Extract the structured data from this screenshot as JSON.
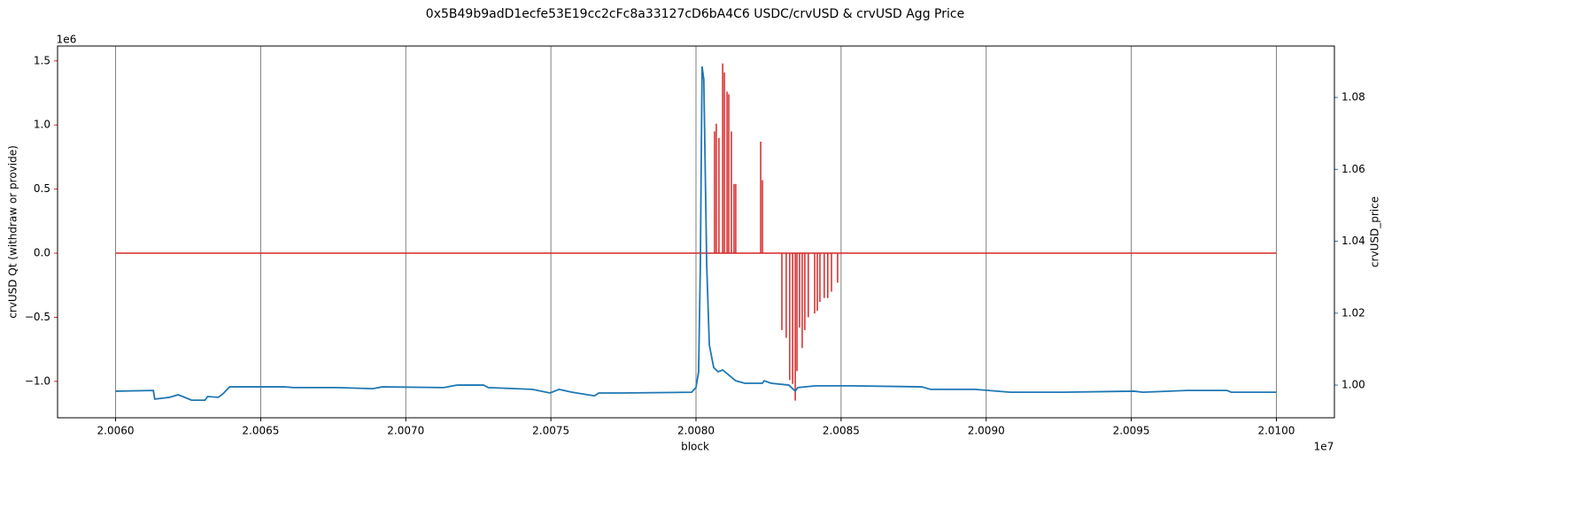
{
  "chart_data": {
    "type": "line",
    "title": "0x5B49b9adD1ecfe53E19cc2cFc8a33127cD6bA4C6 USDC/crvUSD & crvUSD Agg Price",
    "xlabel": "block",
    "ylabel": "crvUSD Qt (withdraw or provide)",
    "y2label": "crvUSD_price",
    "x_offset_label": "1e7",
    "y_offset_label": "1e6",
    "ylabel_color": "#d62728",
    "y2label_color": "#1f77b4",
    "grid": true,
    "xlim": [
      20058000,
      20102000
    ],
    "xticks": [
      {
        "value": 20060000,
        "label": "2.0060"
      },
      {
        "value": 20065000,
        "label": "2.0065"
      },
      {
        "value": 20070000,
        "label": "2.0070"
      },
      {
        "value": 20075000,
        "label": "2.0075"
      },
      {
        "value": 20080000,
        "label": "2.0080"
      },
      {
        "value": 20085000,
        "label": "2.0085"
      },
      {
        "value": 20090000,
        "label": "2.0090"
      },
      {
        "value": 20095000,
        "label": "2.0095"
      },
      {
        "value": 20100000,
        "label": "2.0100"
      }
    ],
    "ylim": [
      -1284000,
      1616000
    ],
    "yticks": [
      {
        "value": -1000000,
        "label": "−1.0"
      },
      {
        "value": -500000,
        "label": "−0.5"
      },
      {
        "value": 0,
        "label": "0.0"
      },
      {
        "value": 500000,
        "label": "0.5"
      },
      {
        "value": 1000000,
        "label": "1.0"
      },
      {
        "value": 1500000,
        "label": "1.5"
      }
    ],
    "y2lim": [
      0.9909,
      1.0943
    ],
    "y2ticks": [
      {
        "value": 1.0,
        "label": "1.00"
      },
      1.02,
      1.04,
      1.06,
      1.08
    ],
    "series": [
      {
        "name": "crvUSD Qt (withdraw or provide)",
        "type": "stem",
        "axis": "y",
        "color": "#d62728",
        "x": [
          20060000,
          20080640,
          20080700,
          20080790,
          20080920,
          20080980,
          20081070,
          20081130,
          20081220,
          20081310,
          20081370,
          20082230,
          20082290,
          20082960,
          20083110,
          20083230,
          20083330,
          20083420,
          20083480,
          20083570,
          20083660,
          20083750,
          20083870,
          20084090,
          20084180,
          20084270,
          20084420,
          20084540,
          20084670,
          20084880,
          20100000
        ],
        "values": [
          0,
          950000,
          1010000,
          900000,
          1480000,
          1410000,
          1260000,
          1240000,
          950000,
          540000,
          540000,
          870000,
          570000,
          -600000,
          -660000,
          -990000,
          -1020000,
          -1150000,
          -920000,
          -580000,
          -740000,
          -600000,
          -500000,
          -470000,
          -450000,
          -380000,
          -350000,
          -350000,
          -300000,
          -230000,
          0
        ]
      },
      {
        "name": "crvUSD_price",
        "type": "line",
        "axis": "y2",
        "color": "#1f77b4",
        "x": [
          20060000,
          20061300,
          20061350,
          20061860,
          20062160,
          20062620,
          20063080,
          20063170,
          20063540,
          20063690,
          20063930,
          20065820,
          20066130,
          20067650,
          20068870,
          20069180,
          20071310,
          20071770,
          20072680,
          20072840,
          20074360,
          20074970,
          20075280,
          20075730,
          20076500,
          20076650,
          20077410,
          20079850,
          20080000,
          20080090,
          20080150,
          20080210,
          20080270,
          20080370,
          20080460,
          20080610,
          20080760,
          20080920,
          20081070,
          20081370,
          20081680,
          20082290,
          20082350,
          20082590,
          20083200,
          20083420,
          20083510,
          20084120,
          20085340,
          20087780,
          20088080,
          20089610,
          20090830,
          20092660,
          20095090,
          20095400,
          20096920,
          20098300,
          20098450,
          20100000
        ],
        "values": [
          0.9983,
          0.9985,
          0.9961,
          0.9966,
          0.9973,
          0.9958,
          0.9958,
          0.9968,
          0.9966,
          0.9975,
          0.9995,
          0.9995,
          0.9993,
          0.9993,
          0.999,
          0.9995,
          0.9993,
          1.0,
          1.0,
          0.9993,
          0.9988,
          0.9978,
          0.9988,
          0.998,
          0.997,
          0.9978,
          0.9978,
          0.998,
          0.9993,
          1.0037,
          1.0332,
          1.0886,
          1.0849,
          1.0332,
          1.0111,
          1.0049,
          1.0037,
          1.0042,
          1.0032,
          1.0012,
          1.0005,
          1.0005,
          1.0012,
          1.0005,
          1.0,
          0.9983,
          0.9993,
          0.9998,
          0.9998,
          0.9995,
          0.9988,
          0.9988,
          0.998,
          0.998,
          0.9983,
          0.998,
          0.9985,
          0.9985,
          0.998,
          0.998
        ]
      }
    ]
  }
}
